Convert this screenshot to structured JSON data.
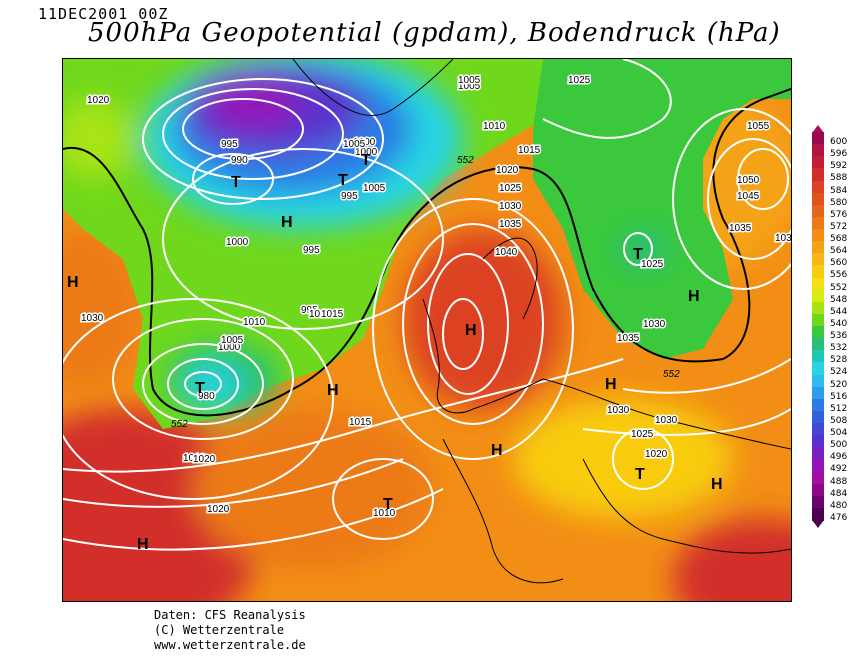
{
  "header": {
    "date": "11DEC2001 00Z",
    "title": "500hPa Geopotential (gpdam), Bodendruck (hPa)"
  },
  "map": {
    "isobar_labels": [
      "1020",
      "1000",
      "1005",
      "995",
      "1010",
      "995",
      "1005",
      "1000",
      "995",
      "990",
      "995",
      "1000",
      "1005",
      "1010",
      "1005",
      "1010",
      "1030",
      "1025",
      "1015",
      "1020",
      "1025",
      "1030",
      "1035",
      "1040",
      "1055",
      "1050",
      "1045",
      "1035",
      "1030",
      "1025",
      "1030",
      "1035",
      "1030",
      "1025",
      "1030",
      "1020",
      "1010",
      "1015",
      "1020",
      "1010",
      "980",
      "1000",
      "1005",
      "1010",
      "1015",
      "1020",
      "1030"
    ],
    "gpdam_labels": [
      "552",
      "552",
      "552"
    ],
    "pressure_centers": [
      "T",
      "T",
      "H",
      "T",
      "H",
      "T",
      "T",
      "H",
      "T",
      "H",
      "H",
      "H",
      "T",
      "H",
      "H",
      "H"
    ]
  },
  "colorbar": {
    "levels": [
      "600",
      "596",
      "592",
      "588",
      "584",
      "580",
      "576",
      "572",
      "568",
      "564",
      "560",
      "556",
      "552",
      "548",
      "544",
      "540",
      "536",
      "532",
      "528",
      "524",
      "520",
      "516",
      "512",
      "508",
      "504",
      "500",
      "496",
      "492",
      "488",
      "484",
      "480",
      "476"
    ],
    "colors": [
      "#9a0a48",
      "#b01443",
      "#c41e36",
      "#d22e2a",
      "#dc4224",
      "#e0531f",
      "#e6651c",
      "#ec7a18",
      "#f28e16",
      "#f5a316",
      "#f8b814",
      "#f8cc10",
      "#f4e014",
      "#d8ec14",
      "#a8e414",
      "#70d81c",
      "#3cc83c",
      "#28c078",
      "#20c8b4",
      "#28d4e4",
      "#2cbcf0",
      "#2c9cec",
      "#2c7ce4",
      "#3060dc",
      "#4048d4",
      "#5c30cc",
      "#7820c4",
      "#9414b8",
      "#a40ca4",
      "#8c0888",
      "#6c0470",
      "#4b0050"
    ]
  },
  "credits": {
    "line1": "Daten: CFS Reanalysis",
    "line2": "(C) Wetterzentrale",
    "line3": "www.wetterzentrale.de"
  }
}
